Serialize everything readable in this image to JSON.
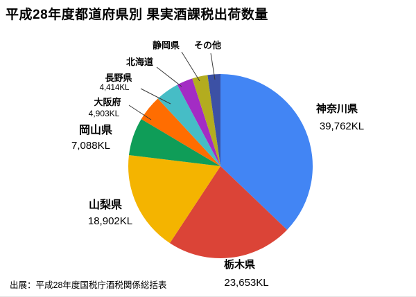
{
  "title": "平成28年度都道府県別 果実酒課税出荷数量",
  "source": "出展：平成28年度国税庁酒税関係総括表",
  "chart_data": {
    "type": "pie",
    "title": "平成28年度都道府県別 果実酒課税出荷数量",
    "unit": "KL",
    "start_angle_deg": 0,
    "direction": "clockwise",
    "legend_position": "none",
    "labels_outside_with_leader_lines": [
      "大阪府",
      "長野県",
      "北海道",
      "静岡県",
      "その他"
    ],
    "slices": [
      {
        "label": "神奈川県",
        "value": 39762,
        "value_label": "39,762KL",
        "color": "#4285F4",
        "value_shown": true
      },
      {
        "label": "栃木県",
        "value": 23653,
        "value_label": "23,653KL",
        "color": "#DB4437",
        "value_shown": true
      },
      {
        "label": "山梨県",
        "value": 18902,
        "value_label": "18,902KL",
        "color": "#F4B400",
        "value_shown": true
      },
      {
        "label": "岡山県",
        "value": 7088,
        "value_label": "7,088KL",
        "color": "#0F9D58",
        "value_shown": true
      },
      {
        "label": "大阪府",
        "value": 4903,
        "value_label": "4,903KL",
        "color": "#FF6D01",
        "value_shown": true
      },
      {
        "label": "長野県",
        "value": 4414,
        "value_label": "4,414KL",
        "color": "#46BDC6",
        "value_shown": true
      },
      {
        "label": "北海道",
        "value": 3000,
        "value_label": "",
        "color": "#A32CC4",
        "value_shown": false,
        "value_estimated": true
      },
      {
        "label": "静岡県",
        "value": 2900,
        "value_label": "",
        "color": "#B3AC1F",
        "value_shown": false,
        "value_estimated": true
      },
      {
        "label": "その他",
        "value": 2400,
        "value_label": "",
        "color": "#3C51A5",
        "value_shown": false,
        "value_estimated": true
      }
    ]
  }
}
